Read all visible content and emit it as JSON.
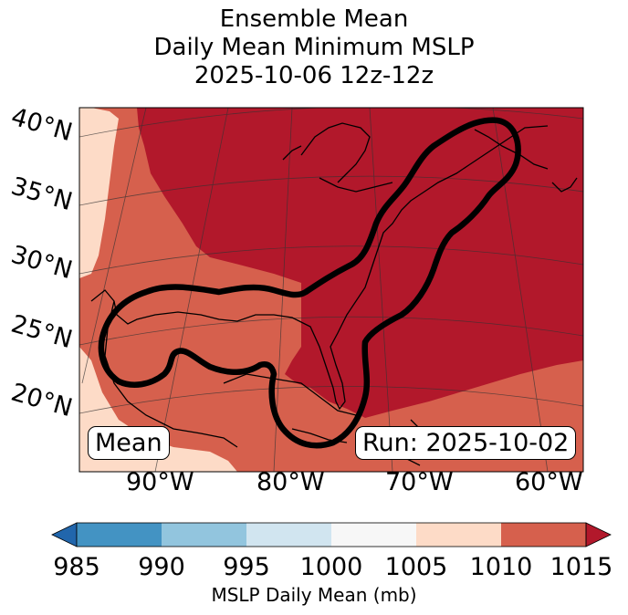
{
  "title": {
    "line1": "Ensemble Mean",
    "line2": "Daily Mean Minimum MSLP",
    "line3": "2025-10-06 12z-12z"
  },
  "lat_labels": [
    "40°N",
    "35°N",
    "30°N",
    "25°N",
    "20°N"
  ],
  "lon_labels": [
    "90°W",
    "80°W",
    "70°W",
    "60°W"
  ],
  "boxes": {
    "left": "Mean",
    "right": "Run: 2025-10-02"
  },
  "colorbar": {
    "label": "MSLP Daily Mean (mb)",
    "ticks": [
      "985",
      "990",
      "995",
      "1000",
      "1005",
      "1010",
      "1015"
    ],
    "colors": [
      "#2166ac",
      "#4393c3",
      "#92c5de",
      "#d1e5f0",
      "#f7f7f7",
      "#fddbc7",
      "#d6604d",
      "#b2182b"
    ]
  }
}
